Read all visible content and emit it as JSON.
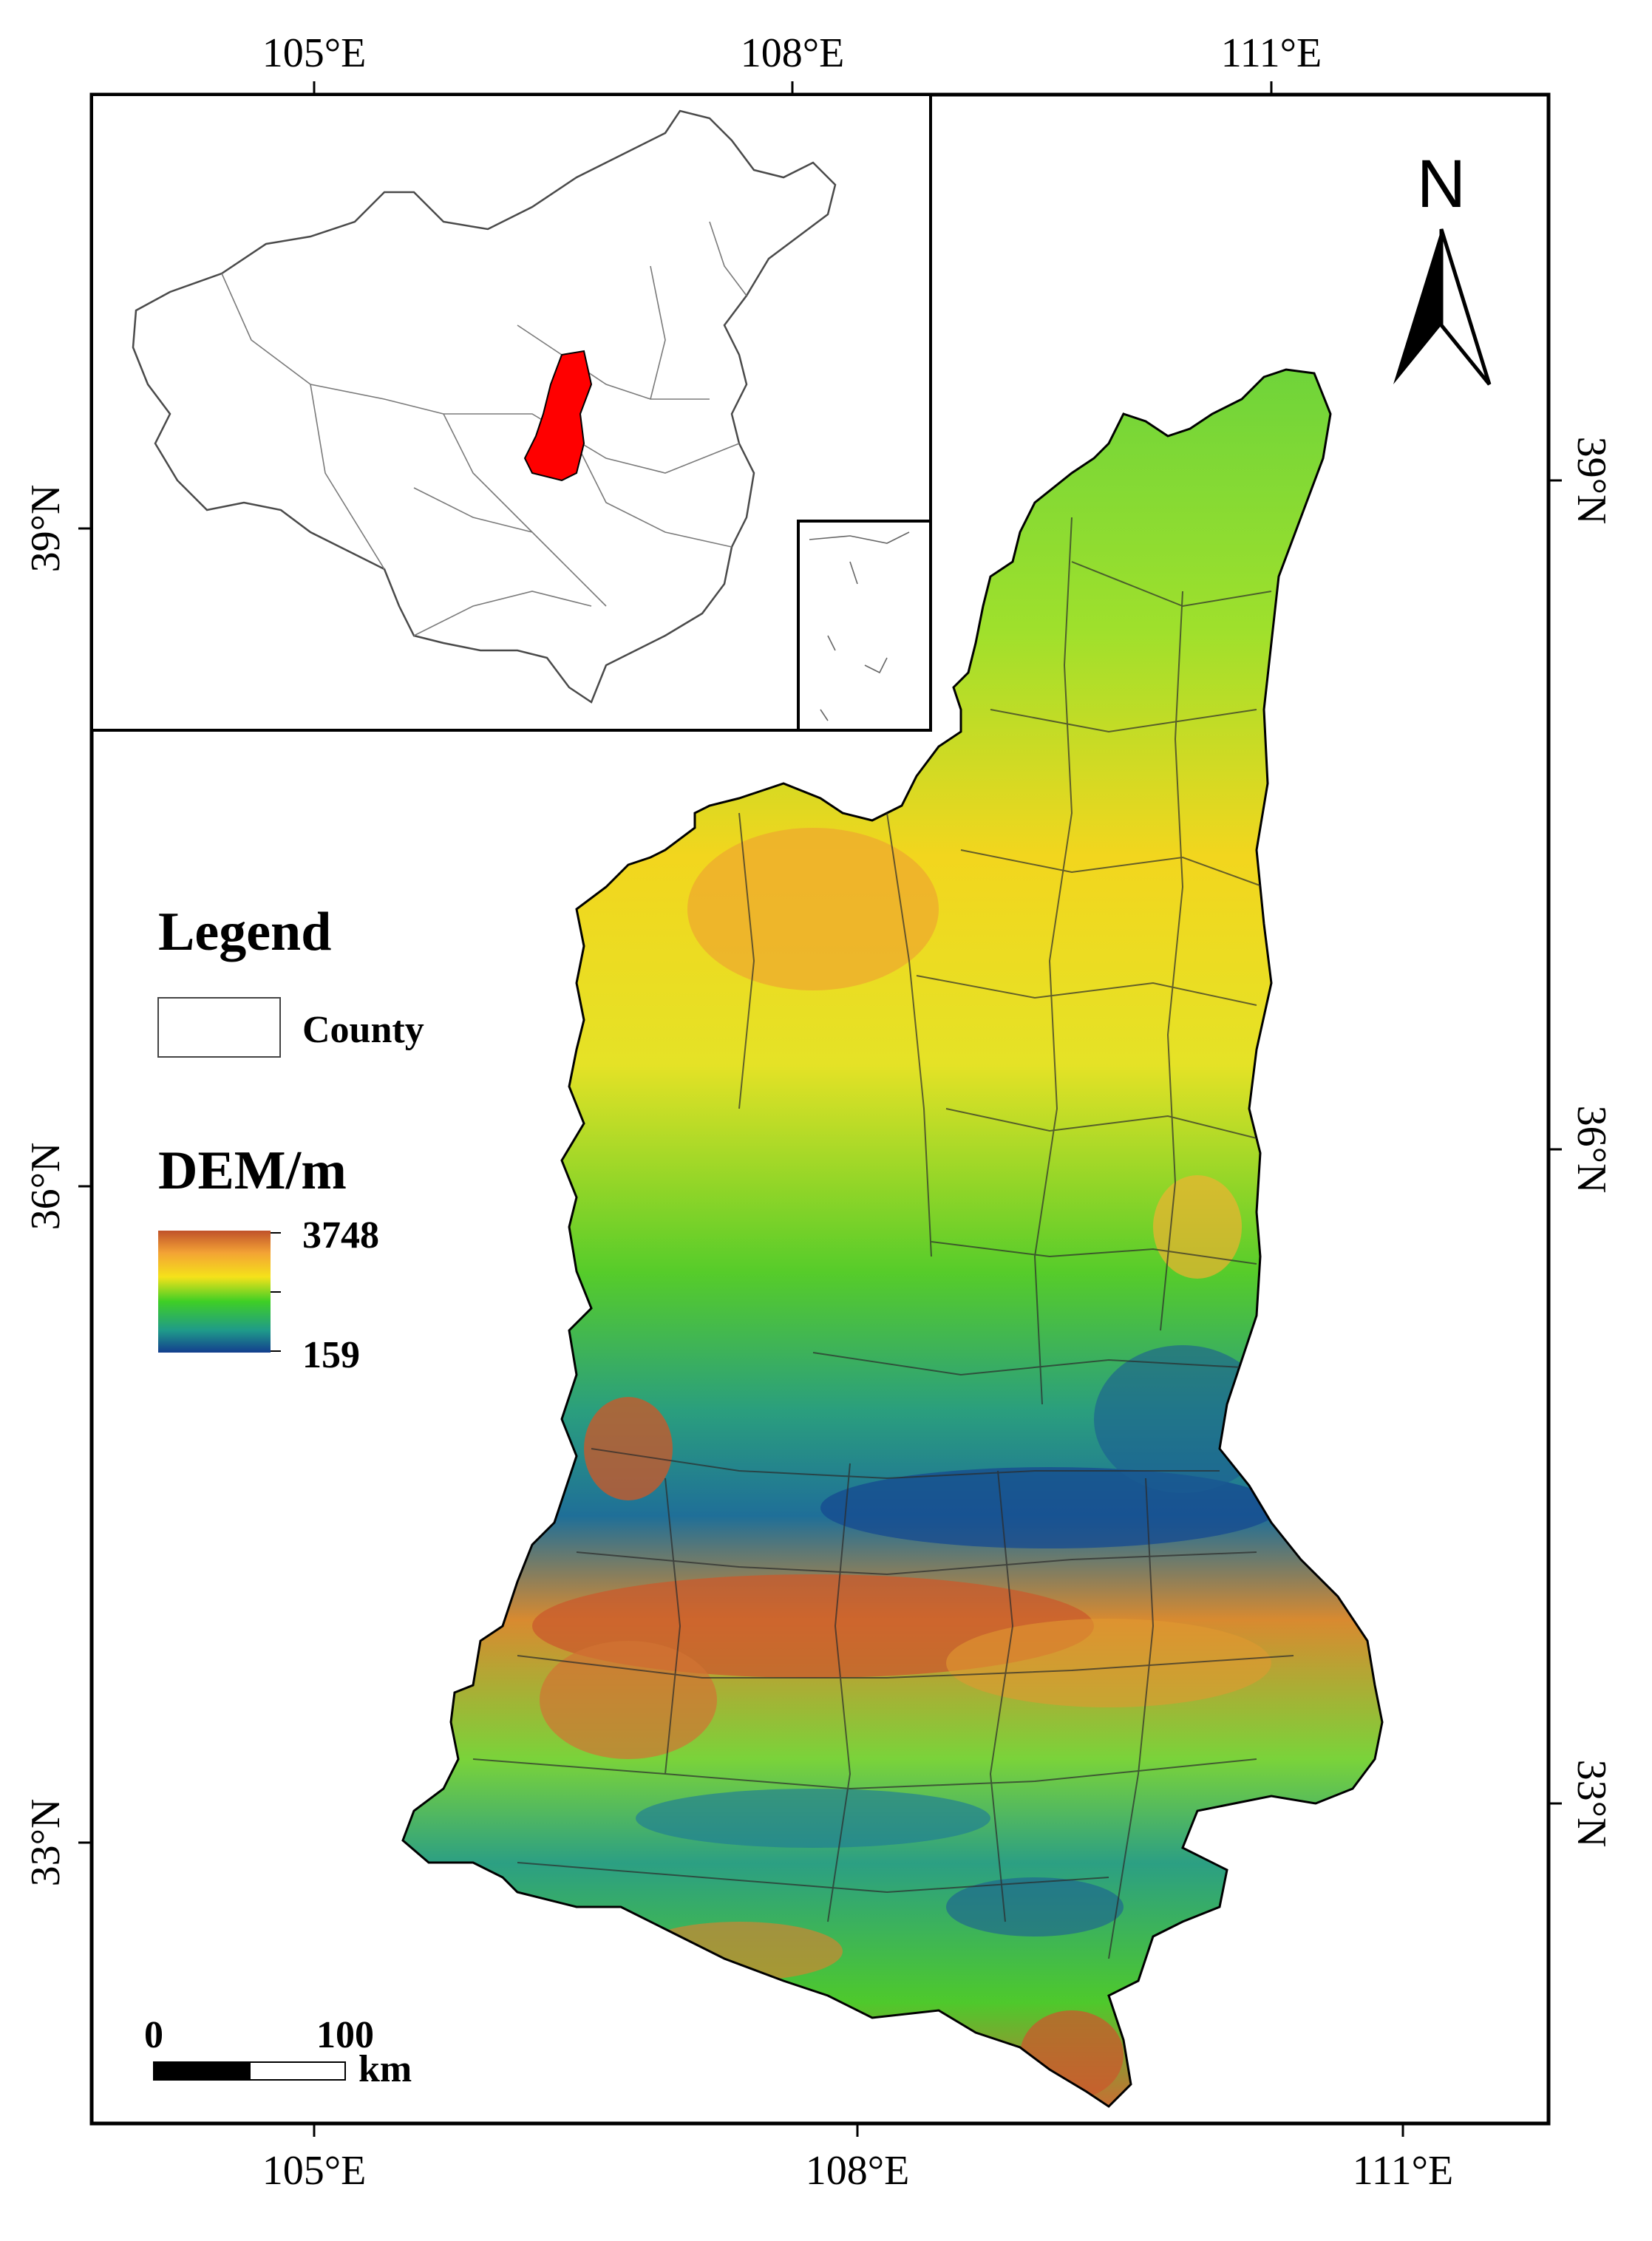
{
  "axes": {
    "top_lon": [
      "105°E",
      "108°E",
      "111°E"
    ],
    "bottom_lon": [
      "105°E",
      "108°E",
      "111°E"
    ],
    "left_lat": [
      "39°N",
      "36°N",
      "33°N"
    ],
    "right_lat": [
      "39°N",
      "36°N",
      "33°N"
    ]
  },
  "north_arrow": {
    "label": "N",
    "icon": "north-arrow-icon"
  },
  "legend": {
    "title": "Legend",
    "county_label": "County",
    "dem_title": "DEM/m",
    "dem_max": "3748",
    "dem_min": "159",
    "colors": [
      "#c0522a",
      "#f3a235",
      "#f5e21a",
      "#3fcf25",
      "#1f9a8a",
      "#133e8e"
    ]
  },
  "scale_bar": {
    "zero": "0",
    "max": "100",
    "unit": "km"
  },
  "inset": {
    "highlight_color": "#ff0000",
    "description_icon": "china-outline-icon"
  }
}
